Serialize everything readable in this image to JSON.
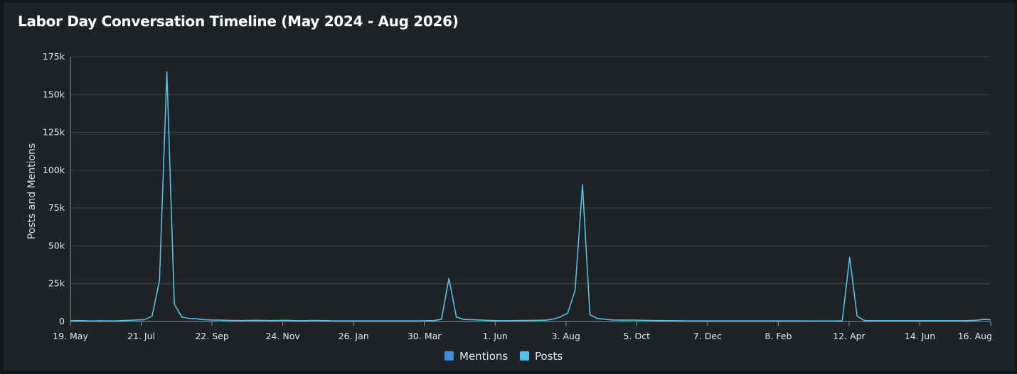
{
  "chart_data": {
    "type": "line",
    "title": "Labor Day Conversation Timeline (May 2024 - Aug 2026)",
    "ylabel": "Posts and Mentions",
    "xlabel": "",
    "ylim": [
      0,
      175000
    ],
    "y_ticks": [
      0,
      25000,
      50000,
      75000,
      100000,
      125000,
      150000,
      175000
    ],
    "y_tick_labels": [
      "0",
      "25k",
      "50k",
      "75k",
      "100k",
      "125k",
      "150k",
      "175k"
    ],
    "x_tick_labels": [
      "19. May",
      "21. Jul",
      "22. Sep",
      "24. Nov",
      "26. Jan",
      "30. Mar",
      "1. Jun",
      "3. Aug",
      "5. Oct",
      "7. Dec",
      "8. Feb",
      "12. Apr",
      "14. Jun",
      "16. Aug"
    ],
    "x_start": "2024-05-19",
    "x_end": "2026-08-16",
    "x_interval": "weekly",
    "grid": true,
    "legend_position": "bottom-center",
    "series": [
      {
        "name": "Mentions",
        "color": "#3a8fde",
        "values": []
      },
      {
        "name": "Posts",
        "color": "#4cc3ec",
        "values": [
          500,
          600,
          500,
          300,
          500,
          400,
          400,
          600,
          800,
          1000,
          1200,
          3500,
          27000,
          165000,
          11500,
          3000,
          2000,
          1800,
          1200,
          1000,
          900,
          800,
          700,
          600,
          700,
          800,
          700,
          600,
          700,
          800,
          600,
          500,
          600,
          700,
          600,
          500,
          400,
          400,
          400,
          400,
          400,
          400,
          400,
          400,
          400,
          400,
          400,
          400,
          500,
          600,
          1500,
          28500,
          3000,
          1300,
          1200,
          1000,
          800,
          600,
          500,
          500,
          600,
          700,
          700,
          800,
          900,
          1500,
          3000,
          5500,
          20500,
          90500,
          4500,
          2000,
          1500,
          1000,
          900,
          900,
          900,
          800,
          700,
          600,
          600,
          500,
          500,
          400,
          400,
          400,
          400,
          400,
          400,
          400,
          400,
          400,
          400,
          400,
          400,
          400,
          400,
          400,
          400,
          400,
          300,
          300,
          300,
          300,
          500,
          42500,
          3500,
          600,
          500,
          500,
          500,
          500,
          500,
          500,
          500,
          500,
          500,
          500,
          500,
          500,
          500,
          600,
          800,
          1400,
          1200
        ]
      }
    ]
  }
}
